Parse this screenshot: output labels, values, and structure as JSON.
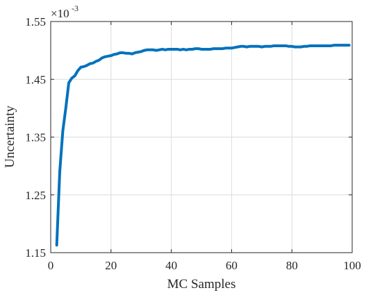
{
  "chart_data": {
    "type": "line",
    "title": "",
    "xlabel": "MC Samples",
    "ylabel": "Uncertainty",
    "exponent_base": "×10",
    "exponent_power": "-3",
    "xlim": [
      0,
      100
    ],
    "ylim": [
      1.15,
      1.55
    ],
    "xticks": [
      0,
      20,
      40,
      60,
      80,
      100
    ],
    "xtick_labels": [
      "0",
      "20",
      "40",
      "60",
      "80",
      "100"
    ],
    "yticks": [
      1.15,
      1.25,
      1.35,
      1.45,
      1.55
    ],
    "ytick_labels": [
      "1.15",
      "1.25",
      "1.35",
      "1.45",
      "1.55"
    ],
    "grid": true,
    "legend": "none",
    "series": [
      {
        "color": "#0072BD",
        "x": [
          2,
          3,
          4,
          5,
          6,
          7,
          8,
          9,
          10,
          11,
          12,
          13,
          14,
          15,
          16,
          17,
          18,
          19,
          20,
          21,
          22,
          23,
          24,
          25,
          26,
          27,
          28,
          29,
          30,
          31,
          32,
          33,
          34,
          35,
          36,
          37,
          38,
          39,
          40,
          41,
          42,
          43,
          44,
          45,
          46,
          47,
          48,
          49,
          50,
          51,
          52,
          53,
          54,
          55,
          56,
          57,
          58,
          59,
          60,
          61,
          62,
          63,
          64,
          65,
          66,
          67,
          68,
          69,
          70,
          71,
          72,
          73,
          74,
          75,
          76,
          77,
          78,
          79,
          80,
          81,
          82,
          83,
          84,
          85,
          86,
          87,
          88,
          89,
          90,
          91,
          92,
          93,
          94,
          95,
          96,
          97,
          98,
          99
        ],
        "y": [
          1.163,
          1.29,
          1.36,
          1.4,
          1.444,
          1.452,
          1.456,
          1.465,
          1.471,
          1.472,
          1.474,
          1.477,
          1.478,
          1.481,
          1.483,
          1.487,
          1.489,
          1.49,
          1.491,
          1.493,
          1.494,
          1.496,
          1.496,
          1.495,
          1.495,
          1.494,
          1.496,
          1.497,
          1.498,
          1.5,
          1.501,
          1.501,
          1.501,
          1.5,
          1.501,
          1.502,
          1.501,
          1.502,
          1.502,
          1.502,
          1.502,
          1.501,
          1.502,
          1.501,
          1.502,
          1.502,
          1.503,
          1.503,
          1.502,
          1.502,
          1.502,
          1.502,
          1.503,
          1.503,
          1.503,
          1.503,
          1.504,
          1.504,
          1.504,
          1.505,
          1.506,
          1.507,
          1.507,
          1.506,
          1.507,
          1.507,
          1.507,
          1.507,
          1.506,
          1.507,
          1.507,
          1.507,
          1.508,
          1.508,
          1.508,
          1.508,
          1.508,
          1.507,
          1.507,
          1.506,
          1.506,
          1.506,
          1.507,
          1.507,
          1.508,
          1.508,
          1.508,
          1.508,
          1.508,
          1.508,
          1.508,
          1.508,
          1.509,
          1.509,
          1.509,
          1.509,
          1.509,
          1.509
        ]
      }
    ]
  }
}
